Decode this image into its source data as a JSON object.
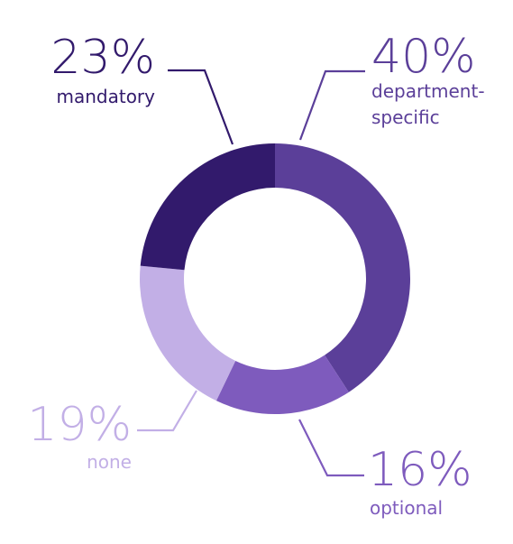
{
  "chart_data": {
    "type": "pie",
    "style": "donut",
    "title": "",
    "slices": [
      {
        "label": "department-specific",
        "label_lines": [
          "department-",
          "specific"
        ],
        "value": 40,
        "display": "40%",
        "color": "#5b3f99"
      },
      {
        "label": "optional",
        "label_lines": [
          "optional"
        ],
        "value": 16,
        "display": "16%",
        "color": "#7e5bbd"
      },
      {
        "label": "none",
        "label_lines": [
          "none"
        ],
        "value": 19,
        "display": "19%",
        "color": "#c2afe6"
      },
      {
        "label": "mandatory",
        "label_lines": [
          "mandatory"
        ],
        "value": 23,
        "display": "23%",
        "color": "#321a6c"
      }
    ]
  }
}
